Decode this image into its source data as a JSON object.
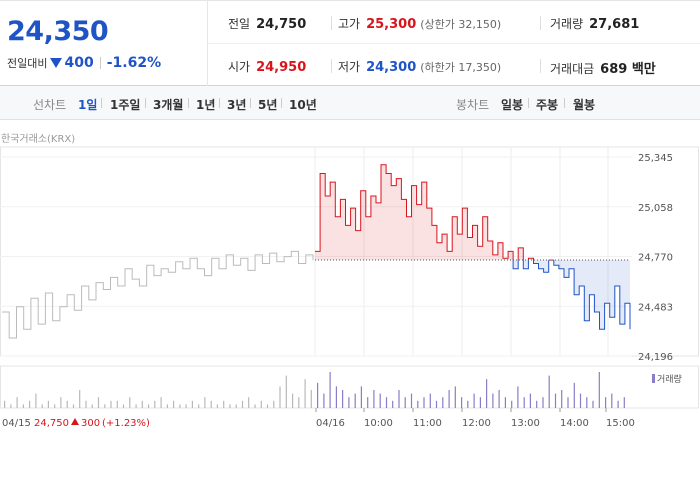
{
  "quote": {
    "price": "24,350",
    "change_label": "전일대비",
    "change_amount": "400",
    "change_rate": "-1.62%"
  },
  "stats": {
    "prev_close": {
      "label": "전일",
      "value": "24,750"
    },
    "high": {
      "label": "고가",
      "value": "25,300",
      "limit_label": "(상한가 32,150)"
    },
    "volume": {
      "label": "거래량",
      "value": "27,681"
    },
    "open": {
      "label": "시가",
      "value": "24,950"
    },
    "low": {
      "label": "저가",
      "value": "24,300",
      "limit_label": "(하한가 17,350)"
    },
    "trade_value": {
      "label": "거래대금",
      "value": "689 백만"
    }
  },
  "period_bar": {
    "line_label": "선차트",
    "line_periods": [
      "1일",
      "1주일",
      "3개월",
      "1년",
      "3년",
      "5년",
      "10년"
    ],
    "active_period": "1일",
    "candle_label": "봉차트",
    "candle_periods": [
      "일봉",
      "주봉",
      "월봉"
    ]
  },
  "chart": {
    "exchange_label": "한국거래소(KRX)",
    "volume_legend": "거래량",
    "prev_day_footer": {
      "date": "04/15",
      "close": "24,750",
      "change": "300",
      "rate": "(+1.23%)"
    },
    "colors": {
      "up": "#d9141d",
      "down": "#1f54c7",
      "prev": "#bbbbbb",
      "volume": "#8a7cc8"
    }
  },
  "chart_data": {
    "type": "line",
    "title": "",
    "y_ticks": [
      "25,345",
      "25,058",
      "24,770",
      "24,483",
      "24,196"
    ],
    "ylim": [
      24196,
      25345
    ],
    "reference_price": 24750,
    "x_ticks": [
      "04/15",
      "04/16",
      "10:00",
      "11:00",
      "12:00",
      "13:00",
      "14:00",
      "15:00"
    ],
    "series": [
      {
        "name": "04/15",
        "values": [
          24450,
          24300,
          24480,
          24350,
          24530,
          24380,
          24560,
          24400,
          24480,
          24550,
          24460,
          24600,
          24520,
          24620,
          24580,
          24650,
          24600,
          24700,
          24640,
          24600,
          24720,
          24660,
          24700,
          24680,
          24740,
          24700,
          24760,
          24700,
          24660,
          24760,
          24700,
          24780,
          24720,
          24760,
          24690,
          24780,
          24730,
          24790,
          24740,
          24770,
          24800,
          24730,
          24780,
          24750
        ]
      },
      {
        "name": "04/16",
        "values": [
          24800,
          25250,
          25120,
          25200,
          25000,
          25100,
          24950,
          25050,
          24920,
          25150,
          25000,
          25120,
          25080,
          25300,
          25250,
          25180,
          25220,
          25100,
          25000,
          25180,
          25070,
          25200,
          25050,
          24950,
          24850,
          24900,
          24800,
          25000,
          24900,
          25050,
          24880,
          24950,
          24830,
          25000,
          24860,
          24780,
          24850,
          24760,
          24800,
          24700,
          24820,
          24700,
          24760,
          24730,
          24700,
          24680,
          24750,
          24720,
          24700,
          24650,
          24700,
          24550,
          24600,
          24400,
          24550,
          24450,
          24350,
          24500,
          24420,
          24600,
          24380,
          24500,
          24350
        ]
      }
    ],
    "volume": [
      2,
      1,
      3,
      1,
      2,
      4,
      1,
      2,
      1,
      3,
      2,
      1,
      5,
      2,
      1,
      3,
      1,
      2,
      2,
      1,
      3,
      1,
      2,
      1,
      2,
      3,
      1,
      2,
      1,
      1,
      2,
      1,
      3,
      2,
      1,
      2,
      1,
      1,
      2,
      3,
      1,
      2,
      1,
      2,
      6,
      9,
      4,
      3,
      8,
      5,
      7,
      4,
      10,
      6,
      5,
      3,
      4,
      6,
      3,
      5,
      4,
      3,
      2,
      5,
      3,
      4,
      2,
      3,
      4,
      2,
      3,
      5,
      6,
      3,
      2,
      4,
      3,
      8,
      4,
      5,
      3,
      2,
      6,
      3,
      4,
      2,
      3,
      9,
      4,
      5,
      3,
      7,
      4,
      3,
      2,
      10,
      3,
      4,
      2,
      3
    ]
  }
}
